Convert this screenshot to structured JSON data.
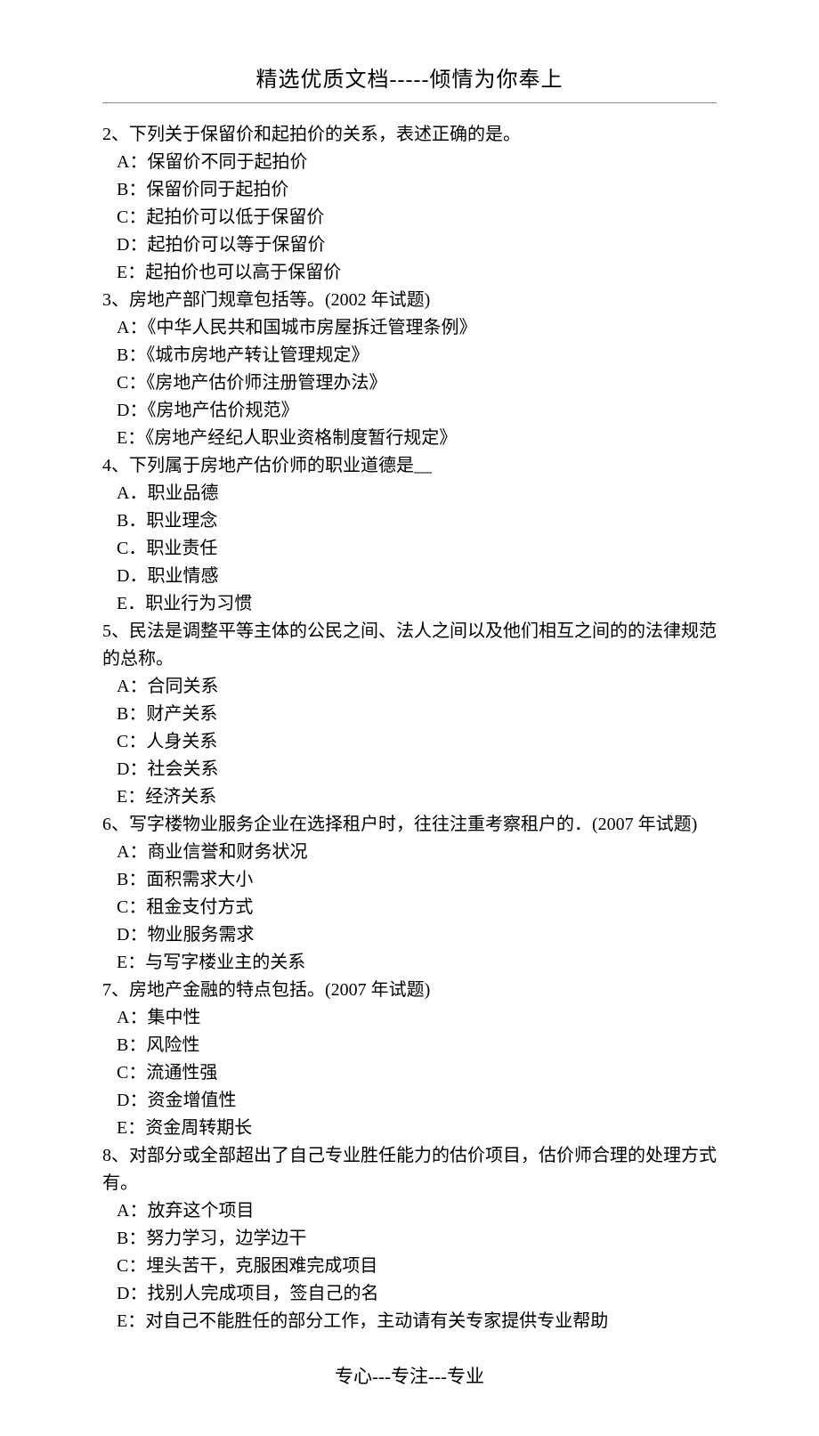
{
  "header": {
    "title": "精选优质文档-----倾情为你奉上"
  },
  "questions": [
    {
      "stem": "2、下列关于保留价和起拍价的关系，表述正确的是。",
      "options": [
        "A：保留价不同于起拍价",
        "B：保留价同于起拍价",
        "C：起拍价可以低于保留价",
        "D：起拍价可以等于保留价",
        "E：起拍价也可以高于保留价"
      ]
    },
    {
      "stem": "3、房地产部门规章包括等。(2002 年试题)",
      "options": [
        "A：《中华人民共和国城市房屋拆迁管理条例》",
        "B：《城市房地产转让管理规定》",
        "C：《房地产估价师注册管理办法》",
        "D：《房地产估价规范》",
        "E：《房地产经纪人职业资格制度暂行规定》"
      ]
    },
    {
      "stem": "4、下列属于房地产估价师的职业道德是__",
      "options": [
        "A．职业品德",
        "B．职业理念",
        "C．职业责任",
        "D．职业情感",
        "E．职业行为习惯"
      ]
    },
    {
      "stem": "5、民法是调整平等主体的公民之间、法人之间以及他们相互之间的的法律规范的总称。",
      "options": [
        "A：合同关系",
        "B：财产关系",
        "C：人身关系",
        "D：社会关系",
        "E：经济关系"
      ]
    },
    {
      "stem": "6、写字楼物业服务企业在选择租户时，往往注重考察租户的．(2007 年试题)",
      "options": [
        "A：商业信誉和财务状况",
        "B：面积需求大小",
        "C：租金支付方式",
        "D：物业服务需求",
        "E：与写字楼业主的关系"
      ]
    },
    {
      "stem": "7、房地产金融的特点包括。(2007 年试题)",
      "options": [
        "A：集中性",
        "B：风险性",
        "C：流通性强",
        "D：资金增值性",
        "E：资金周转期长"
      ]
    },
    {
      "stem": "8、对部分或全部超出了自己专业胜任能力的估价项目，估价师合理的处理方式有。",
      "options": [
        "A：放弃这个项目",
        "B：努力学习，边学边干",
        "C：埋头苦干，克服困难完成项目",
        "D：找别人完成项目，签自己的名",
        "E：对自己不能胜任的部分工作，主动请有关专家提供专业帮助"
      ]
    }
  ],
  "footer": {
    "text": "专心---专注---专业"
  }
}
